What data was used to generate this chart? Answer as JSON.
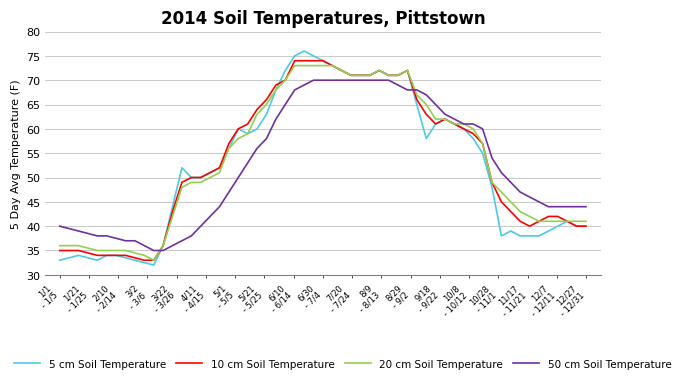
{
  "title": "2014 Soil Temperatures, Pittstown",
  "ylabel": "5 Day Avg Temperature (F)",
  "ylim": [
    30,
    80
  ],
  "yticks": [
    30,
    35,
    40,
    45,
    50,
    55,
    60,
    65,
    70,
    75,
    80
  ],
  "x_labels": [
    "1/1\n- 1/5",
    "1/21\n- 1/25",
    "2/10\n- 2/14",
    "3/2\n- 3/6",
    "3/22\n- 3/26",
    "4/11\n- 4/15",
    "5/1\n- 5/5",
    "5/21\n- 5/25",
    "6/10\n- 6/14",
    "6/30\n- 7/4",
    "7/20\n- 7/24",
    "8/9\n- 8/13",
    "8/29\n- 9/2",
    "9/18\n- 9/22",
    "10/8\n- 10/12",
    "10/28\n- 11/1",
    "11/17\n- 11/21",
    "12/7\n- 12/11",
    "12/27\n- 12/31"
  ],
  "series": {
    "5cm": {
      "color": "#4dc9e6",
      "label": "5 cm Soil Temperature",
      "values": [
        33,
        33.5,
        34,
        33.5,
        33,
        34,
        34,
        33.5,
        33,
        32.5,
        32,
        36,
        44,
        52,
        50,
        50,
        51,
        52,
        56,
        60,
        59,
        60,
        63,
        68,
        72,
        75,
        76,
        75,
        74,
        73,
        72,
        71,
        71,
        71,
        72,
        71,
        71,
        72,
        65,
        58,
        61,
        62,
        61,
        60,
        58,
        55,
        48,
        38,
        39,
        38,
        38,
        38,
        39,
        40,
        41,
        40,
        40
      ]
    },
    "10cm": {
      "color": "#ff0000",
      "label": "10 cm Soil Temperature",
      "values": [
        35,
        35,
        35,
        34.5,
        34,
        34,
        34,
        34,
        33.5,
        33,
        33,
        36,
        43,
        49,
        50,
        50,
        51,
        52,
        57,
        60,
        61,
        64,
        66,
        69,
        70,
        74,
        74,
        74,
        74,
        73,
        72,
        71,
        71,
        71,
        72,
        71,
        71,
        72,
        66,
        63,
        61,
        62,
        61,
        60,
        59,
        57,
        49,
        45,
        43,
        41,
        40,
        41,
        42,
        42,
        41,
        40,
        40
      ]
    },
    "20cm": {
      "color": "#92d050",
      "label": "20 cm Soil Temperature",
      "values": [
        36,
        36,
        36,
        35.5,
        35,
        35,
        35,
        35,
        34.5,
        34,
        33,
        36,
        42,
        48,
        49,
        49,
        50,
        51,
        56,
        58,
        59,
        63,
        65,
        68,
        70,
        73,
        73,
        73,
        73,
        73,
        72,
        71,
        71,
        71,
        72,
        71,
        71,
        72,
        67,
        65,
        62,
        62,
        61,
        61,
        60,
        57,
        49,
        47,
        45,
        43,
        42,
        41,
        41,
        41,
        41,
        41,
        41
      ]
    },
    "50cm": {
      "color": "#7030a0",
      "label": "50 cm Soil Temperature",
      "values": [
        40,
        39.5,
        39,
        38.5,
        38,
        38,
        37.5,
        37,
        37,
        36,
        35,
        35,
        36,
        37,
        38,
        40,
        42,
        44,
        47,
        50,
        53,
        56,
        58,
        62,
        65,
        68,
        69,
        70,
        70,
        70,
        70,
        70,
        70,
        70,
        70,
        70,
        69,
        68,
        68,
        67,
        65,
        63,
        62,
        61,
        61,
        60,
        54,
        51,
        49,
        47,
        46,
        45,
        44,
        44,
        44,
        44,
        44
      ]
    }
  }
}
